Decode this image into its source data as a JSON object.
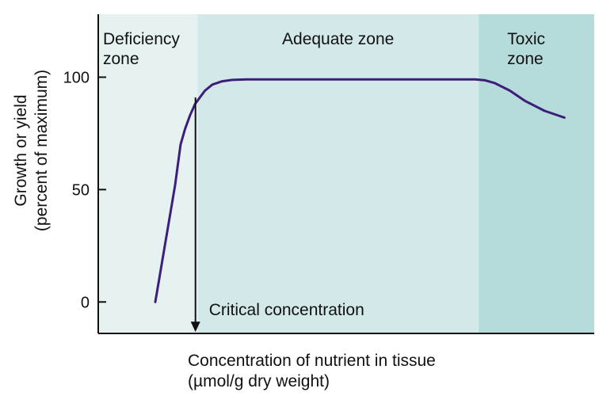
{
  "chart_data": {
    "type": "line",
    "xlabel_lines": [
      "Concentration of nutrient in tissue",
      "(µmol/g dry weight)"
    ],
    "ylabel_lines": [
      "Growth or yield",
      "(percent of maximum)"
    ],
    "yticks": [
      0,
      50,
      100
    ],
    "ylim": [
      -14,
      128
    ],
    "xlim": [
      0,
      100
    ],
    "grid": false,
    "zones": [
      {
        "name_lines": [
          "Deficiency",
          "zone"
        ],
        "x_start": 0,
        "x_end": 20,
        "color": "#e6f2f2"
      },
      {
        "name_lines": [
          "Adequate zone"
        ],
        "x_start": 20,
        "x_end": 76.7,
        "color": "#d3e8e8"
      },
      {
        "name_lines": [
          "Toxic",
          "zone"
        ],
        "x_start": 76.7,
        "x_end": 100,
        "color": "#b5dcda"
      }
    ],
    "series": [
      {
        "color": "#3d1e7a",
        "x": [
          11.5,
          13.5,
          15.5,
          16.6,
          17.5,
          18.5,
          19.5,
          20.5,
          21.5,
          23,
          25,
          27,
          30,
          40,
          50,
          60,
          70,
          76,
          78,
          80,
          83,
          86,
          90,
          94
        ],
        "y": [
          0,
          26,
          52,
          70,
          77,
          83,
          88,
          91,
          94,
          96.7,
          98.2,
          98.8,
          99,
          99,
          99,
          99,
          99,
          99,
          98.6,
          97.3,
          94,
          89.5,
          85,
          82
        ]
      }
    ],
    "annotations": [
      {
        "text": "Critical concentration",
        "x": 19.6,
        "y_from": 91,
        "y_to": -13
      }
    ]
  }
}
